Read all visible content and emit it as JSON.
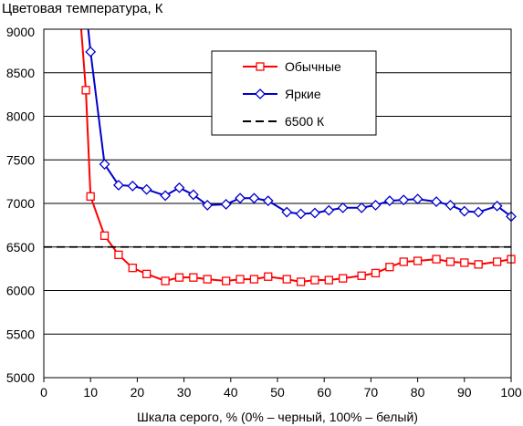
{
  "chart_data": {
    "type": "line",
    "title": "Цветовая температура, К",
    "xlabel": "Шкала серого, % (0% – черный, 100% – белый)",
    "ylabel": "",
    "xlim": [
      0,
      100
    ],
    "ylim": [
      5000,
      9000
    ],
    "x_ticks": [
      "0",
      "10",
      "20",
      "30",
      "40",
      "50",
      "60",
      "70",
      "80",
      "90",
      "100"
    ],
    "y_ticks": [
      "5000",
      "5500",
      "6000",
      "6500",
      "7000",
      "7500",
      "8000",
      "8500",
      "9000"
    ],
    "grid": "horizontal",
    "legend_position": "top-right",
    "series": [
      {
        "name": "Обычные",
        "color": "#ff0000",
        "marker": "square",
        "points": [
          [
            8,
            9000
          ],
          [
            9,
            8300
          ],
          [
            10,
            7080
          ],
          [
            13,
            6630
          ],
          [
            16,
            6410
          ],
          [
            19,
            6260
          ],
          [
            22,
            6190
          ],
          [
            26,
            6110
          ],
          [
            29,
            6150
          ],
          [
            32,
            6150
          ],
          [
            35,
            6130
          ],
          [
            39,
            6110
          ],
          [
            42,
            6130
          ],
          [
            45,
            6130
          ],
          [
            48,
            6160
          ],
          [
            52,
            6130
          ],
          [
            55,
            6100
          ],
          [
            58,
            6120
          ],
          [
            61,
            6120
          ],
          [
            64,
            6140
          ],
          [
            68,
            6170
          ],
          [
            71,
            6200
          ],
          [
            74,
            6270
          ],
          [
            77,
            6330
          ],
          [
            80,
            6340
          ],
          [
            84,
            6360
          ],
          [
            87,
            6330
          ],
          [
            90,
            6320
          ],
          [
            93,
            6300
          ],
          [
            97,
            6330
          ],
          [
            100,
            6360
          ]
        ]
      },
      {
        "name": "Яркие",
        "color": "#0000cc",
        "marker": "diamond",
        "points": [
          [
            9.5,
            9000
          ],
          [
            10,
            8740
          ],
          [
            13,
            7450
          ],
          [
            16,
            7210
          ],
          [
            19,
            7200
          ],
          [
            22,
            7160
          ],
          [
            26,
            7090
          ],
          [
            29,
            7180
          ],
          [
            32,
            7100
          ],
          [
            35,
            6980
          ],
          [
            39,
            6990
          ],
          [
            42,
            7060
          ],
          [
            45,
            7060
          ],
          [
            48,
            7030
          ],
          [
            52,
            6900
          ],
          [
            55,
            6880
          ],
          [
            58,
            6890
          ],
          [
            61,
            6920
          ],
          [
            64,
            6950
          ],
          [
            68,
            6950
          ],
          [
            71,
            6980
          ],
          [
            74,
            7030
          ],
          [
            77,
            7040
          ],
          [
            80,
            7050
          ],
          [
            84,
            7020
          ],
          [
            87,
            6980
          ],
          [
            90,
            6910
          ],
          [
            93,
            6900
          ],
          [
            97,
            6970
          ],
          [
            100,
            6850
          ]
        ]
      },
      {
        "name": "6500 К",
        "color": "#000000",
        "dashed": true,
        "points": [
          [
            0,
            6500
          ],
          [
            100,
            6500
          ]
        ]
      }
    ]
  }
}
